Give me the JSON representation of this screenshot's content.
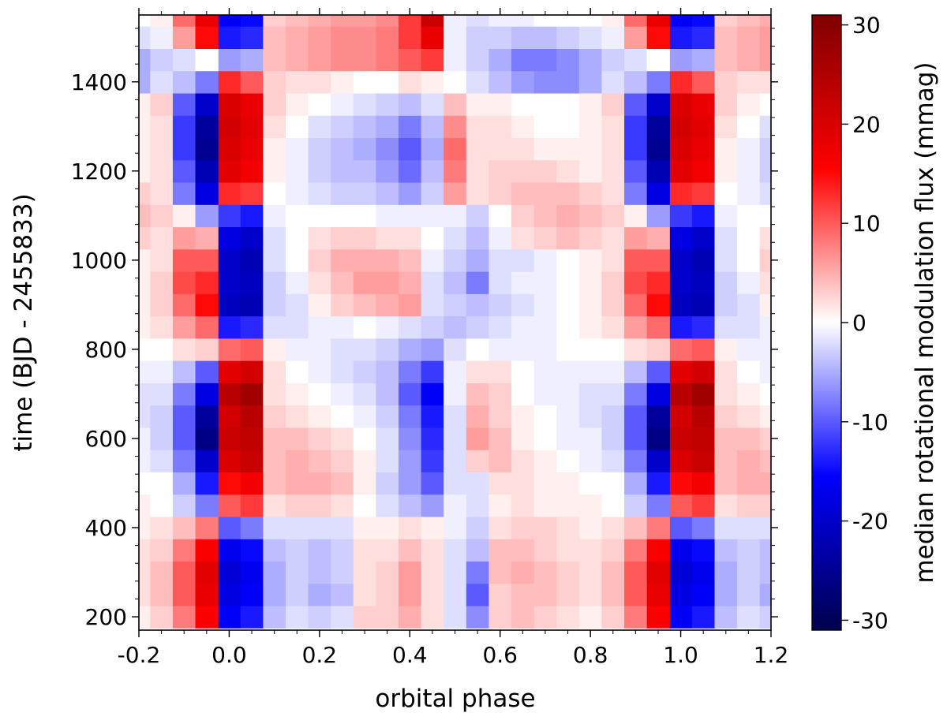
{
  "chart_data": {
    "type": "heatmap",
    "xlabel": "orbital phase",
    "ylabel": "time (BJD - 2455833)",
    "colorbar_label": "median rotational modulation flux (mmag)",
    "colormap": "seismic",
    "xlim": [
      -0.2,
      1.2
    ],
    "ylim": [
      170,
      1550
    ],
    "zlim": [
      -31,
      31
    ],
    "x_ticks": [
      -0.2,
      0.0,
      0.2,
      0.4,
      0.6,
      0.8,
      1.0,
      1.2
    ],
    "x_tick_labels": [
      "-0.2",
      "0.0",
      "0.2",
      "0.4",
      "0.6",
      "0.8",
      "1.0",
      "1.2"
    ],
    "y_ticks": [
      200,
      400,
      600,
      800,
      1000,
      1200,
      1400
    ],
    "y_tick_labels": [
      "200",
      "400",
      "600",
      "800",
      "1000",
      "1200",
      "1400"
    ],
    "colorbar_ticks": [
      30,
      20,
      10,
      0,
      -10,
      -20,
      -30
    ],
    "colorbar_tick_labels": [
      "30",
      "20",
      "10",
      "0",
      "-10",
      "-20",
      "-30"
    ],
    "phase_bins": [
      0.0,
      0.05,
      0.1,
      0.15,
      0.2,
      0.25,
      0.3,
      0.35,
      0.4,
      0.45,
      0.5,
      0.55,
      0.6,
      0.65,
      0.7,
      0.75,
      0.8,
      0.85,
      0.9,
      0.95
    ],
    "time_bins": [
      200,
      250,
      300,
      350,
      400,
      450,
      500,
      550,
      600,
      650,
      700,
      750,
      800,
      850,
      900,
      950,
      1000,
      1050,
      1100,
      1150,
      1200,
      1250,
      1300,
      1350,
      1400,
      1450,
      1500,
      1550
    ],
    "values_mmag": [
      [
        -16,
        -14,
        -4,
        -2,
        -3,
        -2,
        3,
        3,
        5,
        2,
        -2,
        -7,
        3,
        4,
        3,
        2,
        1,
        3,
        8,
        16
      ],
      [
        -18,
        -16,
        -5,
        -3,
        -5,
        -4,
        2,
        3,
        6,
        2,
        -2,
        -10,
        3,
        4,
        4,
        3,
        2,
        4,
        10,
        18
      ],
      [
        -19,
        -17,
        -5,
        -3,
        -4,
        -3,
        2,
        3,
        6,
        2,
        -2,
        -8,
        4,
        5,
        4,
        3,
        2,
        4,
        10,
        19
      ],
      [
        -17,
        -15,
        -4,
        -3,
        -4,
        -3,
        2,
        2,
        4,
        2,
        -2,
        -4,
        4,
        4,
        3,
        2,
        2,
        3,
        8,
        16
      ],
      [
        -10,
        -8,
        -2,
        -2,
        -2,
        -2,
        1,
        1,
        2,
        1,
        -1,
        -3,
        2,
        3,
        3,
        2,
        1,
        2,
        4,
        8
      ],
      [
        10,
        12,
        2,
        3,
        3,
        2,
        0,
        -2,
        -4,
        -6,
        -1,
        -2,
        1,
        2,
        1,
        1,
        1,
        0,
        -3,
        -8
      ],
      [
        15,
        17,
        4,
        5,
        5,
        4,
        1,
        -3,
        -6,
        -10,
        -2,
        -2,
        2,
        2,
        1,
        1,
        0,
        0,
        -5,
        -14
      ],
      [
        20,
        22,
        4,
        5,
        4,
        3,
        1,
        -2,
        -6,
        -12,
        -2,
        3,
        4,
        2,
        1,
        0,
        -1,
        -2,
        -8,
        -20
      ],
      [
        22,
        23,
        4,
        4,
        3,
        2,
        0,
        -2,
        -7,
        -13,
        -2,
        6,
        4,
        1,
        0,
        -1,
        -1,
        -3,
        -10,
        -26
      ],
      [
        21,
        24,
        3,
        2,
        1,
        0,
        -1,
        -3,
        -8,
        -14,
        -2,
        5,
        3,
        1,
        0,
        -1,
        -2,
        -3,
        -10,
        -24
      ],
      [
        24,
        27,
        2,
        1,
        0,
        -1,
        -2,
        -4,
        -10,
        -16,
        -1,
        4,
        3,
        0,
        -1,
        -1,
        -2,
        -2,
        -8,
        -18
      ],
      [
        19,
        21,
        2,
        0,
        -1,
        -2,
        -3,
        -4,
        -8,
        -12,
        -1,
        2,
        2,
        0,
        -1,
        -1,
        -1,
        -1,
        -4,
        -10
      ],
      [
        9,
        10,
        1,
        -1,
        -1,
        -2,
        -2,
        -3,
        -5,
        -6,
        -2,
        0,
        -1,
        -1,
        -1,
        0,
        0,
        0,
        2,
        3
      ],
      [
        -14,
        -13,
        -2,
        -2,
        -1,
        -1,
        0,
        -1,
        -2,
        -3,
        -4,
        -3,
        -2,
        -1,
        -1,
        0,
        1,
        2,
        6,
        9
      ],
      [
        -21,
        -22,
        -3,
        -2,
        1,
        3,
        4,
        5,
        6,
        -2,
        -3,
        -4,
        -3,
        -2,
        -1,
        0,
        1,
        3,
        9,
        15
      ],
      [
        -20,
        -21,
        -3,
        -1,
        2,
        4,
        6,
        6,
        5,
        -2,
        -4,
        -8,
        -2,
        -1,
        -1,
        0,
        1,
        3,
        11,
        13
      ],
      [
        -20,
        -22,
        -2,
        0,
        3,
        5,
        5,
        5,
        4,
        -1,
        -3,
        -5,
        -2,
        -2,
        -1,
        0,
        1,
        2,
        10,
        10
      ],
      [
        -18,
        -20,
        -2,
        0,
        2,
        3,
        3,
        2,
        2,
        0,
        -2,
        -4,
        -1,
        2,
        3,
        4,
        3,
        2,
        6,
        5
      ],
      [
        -12,
        -14,
        -1,
        0,
        0,
        0,
        0,
        -1,
        -1,
        -1,
        -1,
        -3,
        0,
        3,
        4,
        5,
        4,
        3,
        1,
        -6
      ],
      [
        13,
        12,
        0,
        -1,
        -2,
        -3,
        -3,
        -4,
        -6,
        -3,
        6,
        2,
        3,
        4,
        4,
        4,
        3,
        2,
        -8,
        -18
      ],
      [
        19,
        17,
        1,
        -1,
        -3,
        -4,
        -4,
        -6,
        -9,
        -4,
        8,
        2,
        3,
        3,
        3,
        2,
        1,
        2,
        -10,
        -22
      ],
      [
        20,
        18,
        1,
        -1,
        -3,
        -4,
        -5,
        -7,
        -10,
        -5,
        9,
        2,
        2,
        2,
        1,
        1,
        1,
        2,
        -12,
        -25
      ],
      [
        21,
        19,
        2,
        0,
        -2,
        -3,
        -4,
        -5,
        -8,
        -4,
        7,
        2,
        2,
        1,
        0,
        0,
        1,
        2,
        -12,
        -24
      ],
      [
        20,
        18,
        3,
        1,
        0,
        -1,
        -2,
        -3,
        -4,
        -2,
        4,
        1,
        1,
        0,
        0,
        0,
        1,
        3,
        -10,
        -20
      ],
      [
        13,
        10,
        3,
        2,
        2,
        1,
        0,
        0,
        2,
        1,
        0,
        -2,
        -4,
        -6,
        -7,
        -7,
        -5,
        -2,
        -4,
        -8
      ],
      [
        -6,
        -5,
        4,
        5,
        6,
        7,
        7,
        8,
        10,
        12,
        -1,
        -3,
        -5,
        -8,
        -8,
        -7,
        -5,
        -3,
        -2,
        0
      ],
      [
        -14,
        -13,
        4,
        5,
        6,
        7,
        7,
        8,
        12,
        18,
        -1,
        -3,
        -3,
        -4,
        -4,
        -3,
        -2,
        -1,
        6,
        15
      ],
      [
        -16,
        -15,
        3,
        4,
        5,
        6,
        6,
        7,
        12,
        22,
        -1,
        -2,
        -1,
        -1,
        0,
        0,
        0,
        1,
        9,
        18
      ]
    ]
  }
}
